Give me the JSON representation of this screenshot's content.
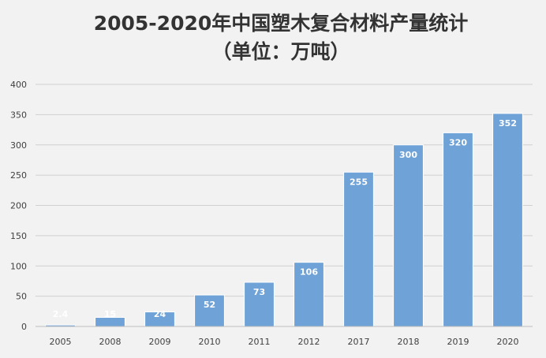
{
  "chart_data": {
    "type": "bar",
    "title": "2005-2020年中国塑木复合材料产量统计",
    "subtitle": "（单位：万吨）",
    "xlabel": "",
    "ylabel": "",
    "categories": [
      "2005",
      "2008",
      "2009",
      "2010",
      "2011",
      "2012",
      "2017",
      "2018",
      "2019",
      "2020"
    ],
    "values": [
      2.4,
      15,
      24,
      52,
      73,
      106,
      255,
      300,
      320,
      352
    ],
    "data_labels": [
      "2.4",
      "15",
      "24",
      "52",
      "73",
      "106",
      "255",
      "300",
      "320",
      "352"
    ],
    "ylim": [
      0,
      400
    ],
    "yticks": [
      0,
      50,
      100,
      150,
      200,
      250,
      300,
      350,
      400
    ],
    "ytick_labels": [
      "0",
      "50",
      "100",
      "150",
      "200",
      "250",
      "300",
      "350",
      "400"
    ],
    "grid": true,
    "legend": "none",
    "colors": {
      "bar": "#6fa2d6",
      "bar_edge": "#ffffff",
      "grid": "#d0d0d0",
      "axis": "#bfbfbf",
      "background": "#f2f2f2"
    }
  }
}
